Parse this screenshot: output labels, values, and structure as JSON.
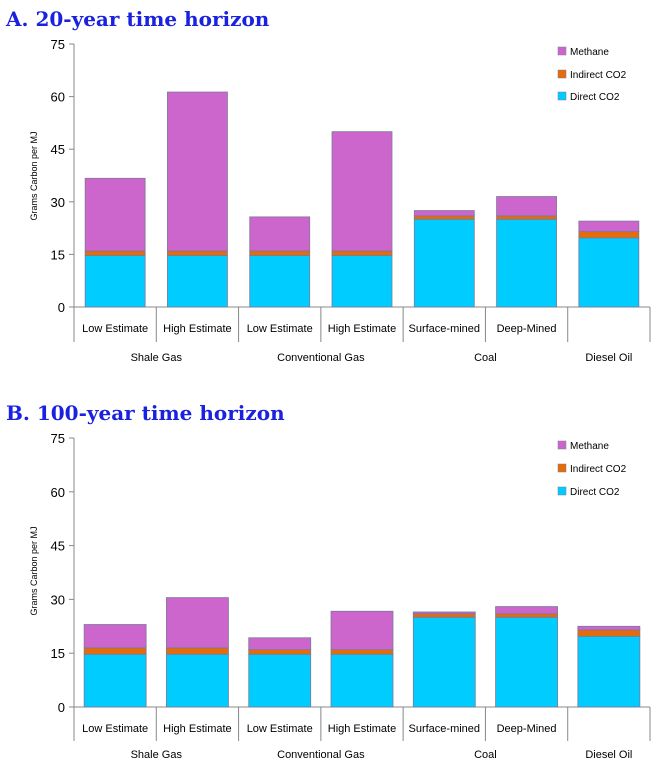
{
  "chart_data": [
    {
      "type": "bar",
      "stacked": true,
      "title": "A.  20-year time horizon",
      "ylabel": "Grams Carbon per MJ",
      "ylim": [
        0,
        75
      ],
      "yticks": [
        "0",
        "15",
        "30",
        "45",
        "60",
        "75"
      ],
      "categories": [
        "Low Estimate",
        "High Estimate",
        "Low Estimate",
        "High Estimate",
        "Surface-mined",
        "Deep-Mined",
        ""
      ],
      "groups": [
        {
          "label": "Shale Gas",
          "span": 2
        },
        {
          "label": "Conventional Gas",
          "span": 2
        },
        {
          "label": "Coal",
          "span": 2
        },
        {
          "label": "Diesel Oil",
          "span": 1
        }
      ],
      "series": [
        {
          "name": "Direct CO2",
          "color": "#00ccff",
          "values": [
            14.7,
            14.7,
            14.7,
            14.7,
            25,
            25,
            19.7
          ]
        },
        {
          "name": "Indirect CO2",
          "color": "#e46c0a",
          "values": [
            1.3,
            1.3,
            1.3,
            1.3,
            1,
            1,
            1.8
          ]
        },
        {
          "name": "Methane",
          "color": "#cc66cc",
          "values": [
            20.7,
            45.3,
            9.7,
            34,
            1.5,
            5.5,
            3
          ]
        }
      ],
      "legend": "top-right",
      "grid": false
    },
    {
      "type": "bar",
      "stacked": true,
      "title": "B.  100-year time horizon",
      "ylabel": "Grams Carbon per MJ",
      "ylim": [
        0,
        75
      ],
      "yticks": [
        "0",
        "15",
        "30",
        "45",
        "60",
        "75"
      ],
      "categories": [
        "Low Estimate",
        "High Estimate",
        "Low Estimate",
        "High Estimate",
        "Surface-mined",
        "Deep-Mined",
        ""
      ],
      "groups": [
        {
          "label": "Shale Gas",
          "span": 2
        },
        {
          "label": "Conventional Gas",
          "span": 2
        },
        {
          "label": "Coal",
          "span": 2
        },
        {
          "label": "Diesel Oil",
          "span": 1
        }
      ],
      "series": [
        {
          "name": "Direct CO2",
          "color": "#00ccff",
          "values": [
            14.7,
            14.7,
            14.7,
            14.7,
            25,
            25,
            19.7
          ]
        },
        {
          "name": "Indirect CO2",
          "color": "#e46c0a",
          "values": [
            1.8,
            1.8,
            1.3,
            1.3,
            1,
            1,
            1.8
          ]
        },
        {
          "name": "Methane",
          "color": "#cc66cc",
          "values": [
            6.5,
            14,
            3.3,
            10.7,
            0.5,
            2,
            1
          ]
        }
      ],
      "legend": "top-right",
      "grid": false
    }
  ]
}
